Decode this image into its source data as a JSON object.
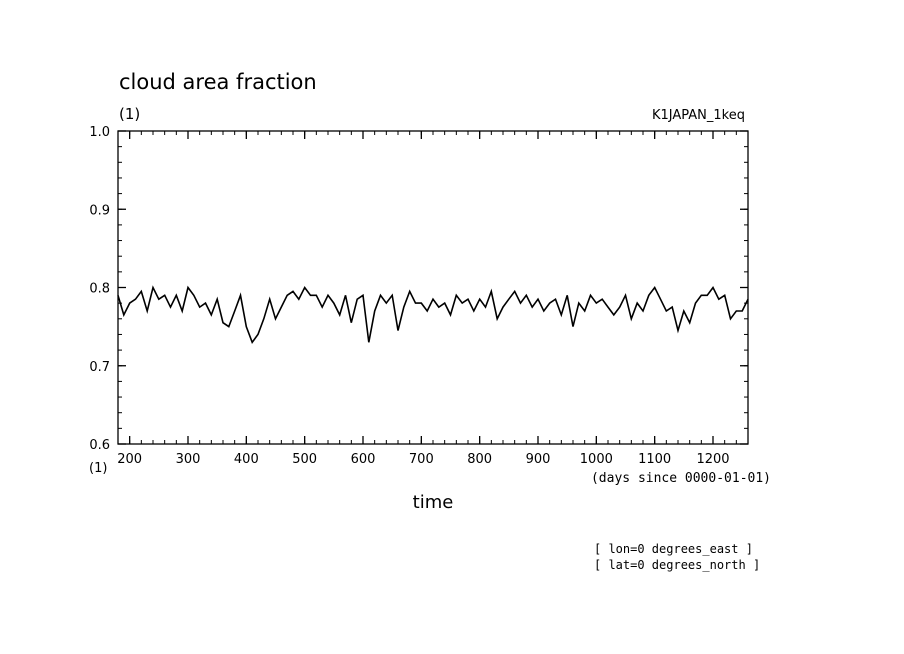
{
  "chart_data": {
    "type": "line",
    "title": "cloud area fraction",
    "y_unit": "(1)",
    "x_unit": "(1)",
    "experiment": "K1JAPAN_1keq",
    "xlabel": "time",
    "xlabel_units": "(days since 0000-01-01)",
    "ylim": [
      0.6,
      1.0
    ],
    "xlim": [
      180,
      1260
    ],
    "y_ticks": [
      "0.6",
      "0.7",
      "0.8",
      "0.9",
      "1.0"
    ],
    "x_ticks": [
      "200",
      "300",
      "400",
      "500",
      "600",
      "700",
      "800",
      "900",
      "1000",
      "1100",
      "1200"
    ],
    "annotations": [
      "[ lon=0 degrees_east ]",
      "[ lat=0 degrees_north ]"
    ],
    "line_color": "#000000",
    "series": [
      {
        "x": [
          180,
          190,
          200,
          210,
          220,
          230,
          240,
          250,
          260,
          270,
          280,
          290,
          300,
          310,
          320,
          330,
          340,
          350,
          360,
          370,
          380,
          390,
          400,
          410,
          420,
          430,
          440,
          450,
          460,
          470,
          480,
          490,
          500,
          510,
          520,
          530,
          540,
          550,
          560,
          570,
          580,
          590,
          600,
          610,
          620,
          630,
          640,
          650,
          660,
          670,
          680,
          690,
          700,
          710,
          720,
          730,
          740,
          750,
          760,
          770,
          780,
          790,
          800,
          810,
          820,
          830,
          840,
          850,
          860,
          870,
          880,
          890,
          900,
          910,
          920,
          930,
          940,
          950,
          960,
          970,
          980,
          990,
          1000,
          1010,
          1020,
          1030,
          1040,
          1050,
          1060,
          1070,
          1080,
          1090,
          1100,
          1110,
          1120,
          1130,
          1140,
          1150,
          1160,
          1170,
          1180,
          1190,
          1200,
          1210,
          1220,
          1230,
          1240,
          1250,
          1260
        ],
        "values": [
          0.79,
          0.765,
          0.78,
          0.785,
          0.795,
          0.77,
          0.8,
          0.785,
          0.79,
          0.775,
          0.79,
          0.77,
          0.8,
          0.79,
          0.775,
          0.78,
          0.765,
          0.785,
          0.755,
          0.75,
          0.77,
          0.79,
          0.75,
          0.73,
          0.74,
          0.76,
          0.785,
          0.76,
          0.775,
          0.79,
          0.795,
          0.785,
          0.8,
          0.79,
          0.79,
          0.775,
          0.79,
          0.78,
          0.765,
          0.79,
          0.755,
          0.785,
          0.79,
          0.73,
          0.77,
          0.79,
          0.78,
          0.79,
          0.745,
          0.775,
          0.795,
          0.78,
          0.78,
          0.77,
          0.785,
          0.775,
          0.78,
          0.765,
          0.79,
          0.78,
          0.785,
          0.77,
          0.785,
          0.775,
          0.795,
          0.76,
          0.775,
          0.785,
          0.795,
          0.78,
          0.79,
          0.775,
          0.785,
          0.77,
          0.78,
          0.785,
          0.765,
          0.79,
          0.75,
          0.78,
          0.77,
          0.79,
          0.78,
          0.785,
          0.775,
          0.765,
          0.775,
          0.79,
          0.76,
          0.78,
          0.77,
          0.79,
          0.8,
          0.785,
          0.77,
          0.775,
          0.745,
          0.77,
          0.755,
          0.78,
          0.79,
          0.79,
          0.8,
          0.785,
          0.79,
          0.76,
          0.77,
          0.77,
          0.785
        ]
      }
    ]
  }
}
